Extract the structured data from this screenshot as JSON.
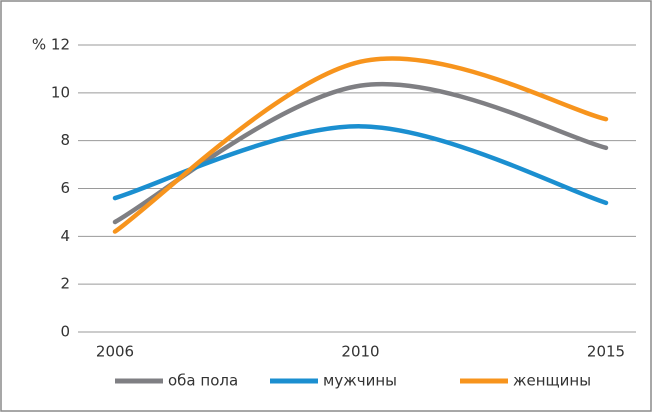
{
  "chart_data": {
    "type": "line",
    "categories": [
      "2006",
      "2010",
      "2015"
    ],
    "series": [
      {
        "name": "оба пола",
        "color": "#7f7f83",
        "values": [
          4.6,
          10.3,
          7.7
        ]
      },
      {
        "name": "мужчины",
        "color": "#1b8fd0",
        "values": [
          5.6,
          8.6,
          5.4
        ]
      },
      {
        "name": "женщины",
        "color": "#f7941d",
        "values": [
          4.2,
          11.3,
          8.9
        ]
      }
    ],
    "ylim": [
      0,
      12
    ],
    "yticks": [
      0,
      2,
      4,
      6,
      8,
      10,
      {
        "value": 12,
        "label": "% 12"
      }
    ],
    "grid": true,
    "legend": "bottom"
  }
}
